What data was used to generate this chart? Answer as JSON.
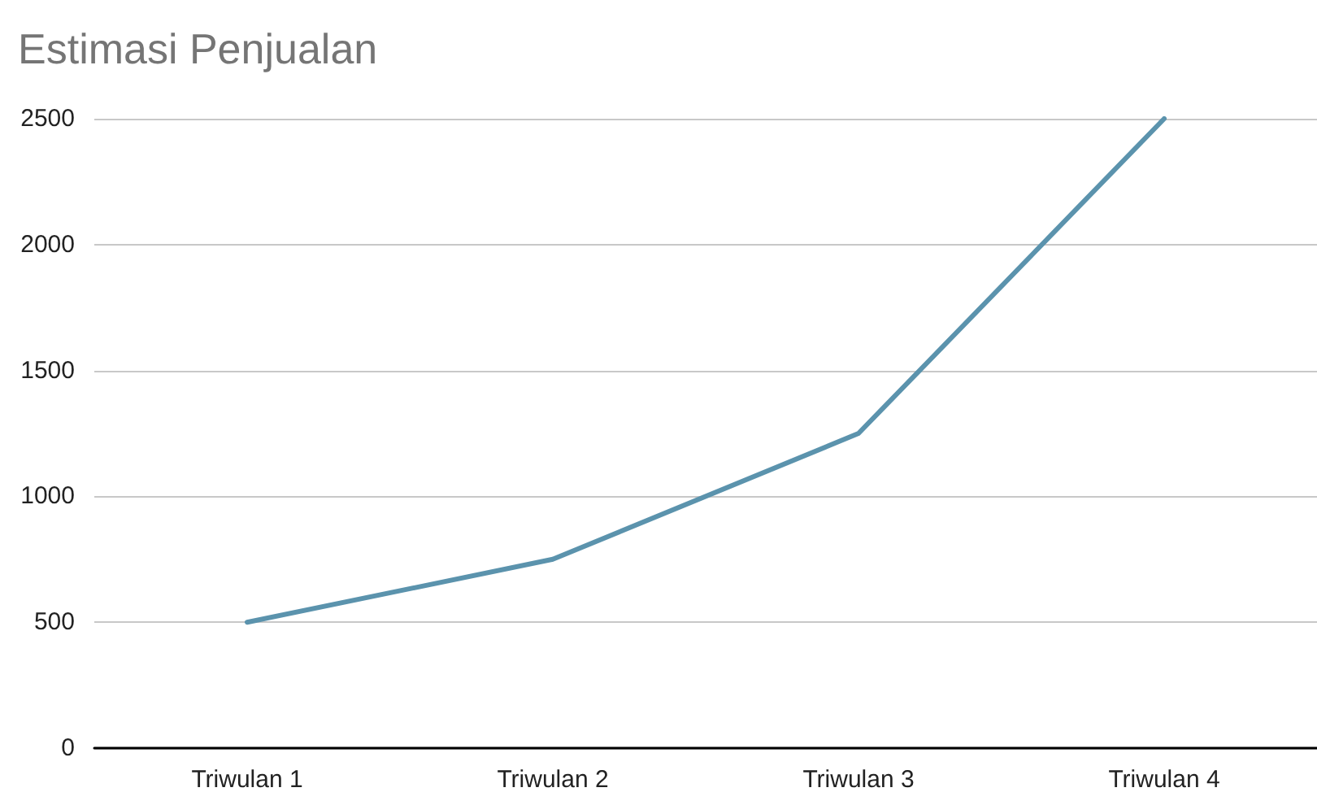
{
  "chart_data": {
    "type": "line",
    "title": "Estimasi Penjualan",
    "categories": [
      "Triwulan 1",
      "Triwulan 2",
      "Triwulan 3",
      "Triwulan 4"
    ],
    "series": [
      {
        "color": "#5b93ad",
        "values": [
          500,
          750,
          1250,
          2500
        ]
      }
    ],
    "ylim": [
      0,
      2500
    ],
    "yticks": [
      0,
      500,
      1000,
      1500,
      2000,
      2500
    ],
    "grid": "y",
    "marker": "none",
    "line_style": "solid"
  }
}
